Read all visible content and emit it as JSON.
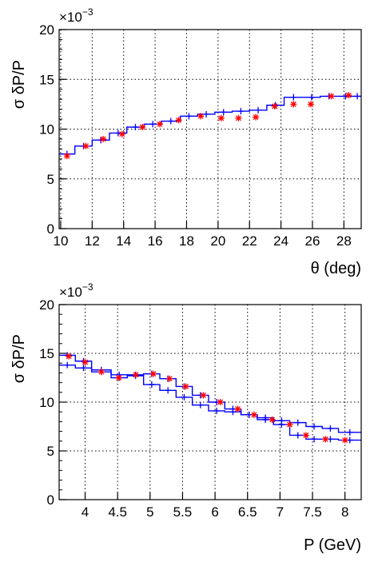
{
  "chart_data": [
    {
      "type": "line",
      "xlabel": "θ (deg)",
      "ylabel": "σ δP/P",
      "y_multiplier": {
        "base": "×10",
        "exponent": "−3"
      },
      "xlim": [
        9.9,
        29.1
      ],
      "ylim": [
        0,
        20
      ],
      "x_ticks": [
        10,
        12,
        14,
        16,
        18,
        20,
        22,
        24,
        26,
        28
      ],
      "y_ticks": [
        0,
        5,
        10,
        15,
        20
      ],
      "grid": true,
      "series": [
        {
          "color": "#0000ff",
          "style": "step",
          "bin_edges": [
            9.9,
            10.9,
            12.0,
            13.1,
            14.2,
            15.3,
            16.4,
            17.6,
            18.7,
            19.8,
            20.9,
            22.0,
            23.1,
            24.2,
            25.4,
            26.5,
            27.6,
            28.6,
            29.1
          ],
          "values": [
            7.5,
            8.3,
            8.9,
            9.6,
            10.2,
            10.5,
            10.8,
            11.3,
            11.5,
            11.7,
            11.8,
            11.9,
            12.4,
            13.2,
            13.2,
            13.3,
            13.3,
            13.3
          ]
        },
        {
          "color": "#ff0000",
          "style": "markers",
          "x": [
            10.4,
            11.6,
            12.7,
            13.9,
            15.2,
            16.3,
            17.5,
            18.9,
            20.2,
            21.3,
            22.4,
            23.6,
            24.8,
            25.9,
            27.2,
            28.3
          ],
          "values": [
            7.3,
            8.3,
            9.0,
            9.5,
            10.2,
            10.5,
            10.9,
            11.3,
            11.1,
            11.1,
            11.2,
            12.3,
            12.5,
            12.5,
            13.3,
            13.4
          ]
        }
      ]
    },
    {
      "type": "line",
      "xlabel": "P (GeV)",
      "ylabel": "σ δP/P",
      "y_multiplier": {
        "base": "×10",
        "exponent": "−3"
      },
      "xlim": [
        3.6,
        8.25
      ],
      "ylim": [
        0,
        20
      ],
      "x_ticks": [
        4,
        4.5,
        5,
        5.5,
        6,
        6.5,
        7,
        7.5,
        8
      ],
      "x_tick_labels": [
        "4",
        "4.5",
        "5",
        "5.5",
        "6",
        "6.5",
        "7",
        "7.5",
        "8"
      ],
      "y_ticks": [
        0,
        5,
        10,
        15,
        20
      ],
      "grid": true,
      "series": [
        {
          "color": "#0000ff",
          "style": "step",
          "bin_edges": [
            3.6,
            3.85,
            4.1,
            4.4,
            4.65,
            4.9,
            5.15,
            5.4,
            5.65,
            5.9,
            6.15,
            6.4,
            6.65,
            6.9,
            7.15,
            7.4,
            7.65,
            7.9,
            8.25
          ],
          "values": [
            13.8,
            13.5,
            13.3,
            12.8,
            12.7,
            11.8,
            11.2,
            10.5,
            9.7,
            9.1,
            9.0,
            8.7,
            8.4,
            8.1,
            7.9,
            7.5,
            7.3,
            6.9
          ]
        },
        {
          "color": "#0000ff",
          "style": "step",
          "bin_edges": [
            3.6,
            3.85,
            4.1,
            4.4,
            4.65,
            4.9,
            5.15,
            5.4,
            5.65,
            5.9,
            6.15,
            6.4,
            6.65,
            6.9,
            7.15,
            7.4,
            7.65,
            7.9,
            8.25
          ],
          "values": [
            14.8,
            14.2,
            13.1,
            12.5,
            12.8,
            12.9,
            12.4,
            11.6,
            10.7,
            10.0,
            9.3,
            8.7,
            8.2,
            7.7,
            6.6,
            6.2,
            6.2,
            6.1
          ]
        },
        {
          "color": "#ff0000",
          "style": "markers",
          "x": [
            3.75,
            4.0,
            4.25,
            4.52,
            4.78,
            5.05,
            5.3,
            5.55,
            5.82,
            6.08,
            6.35,
            6.6,
            6.88,
            7.15,
            7.4,
            7.7,
            8.0
          ],
          "values": [
            14.7,
            14.1,
            13.1,
            12.5,
            12.8,
            12.9,
            12.4,
            11.6,
            10.7,
            10.0,
            9.3,
            8.7,
            8.2,
            7.7,
            6.6,
            6.2,
            6.1
          ]
        }
      ]
    }
  ]
}
